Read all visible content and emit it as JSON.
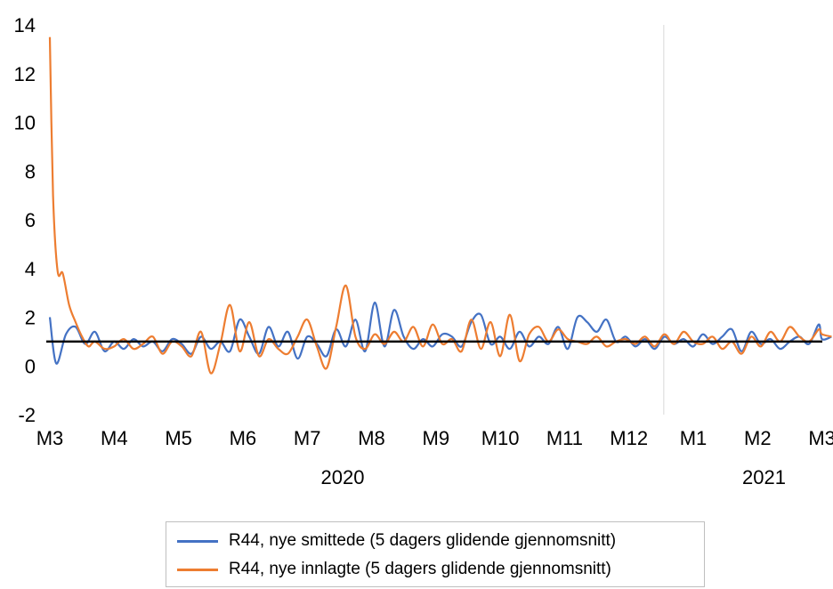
{
  "chart_data": {
    "type": "line",
    "ylim": [
      -2,
      14
    ],
    "yticks": [
      "14",
      "12",
      "10",
      "8",
      "6",
      "4",
      "2",
      "0",
      "-2"
    ],
    "month_labels": [
      "M3",
      "M4",
      "M5",
      "M6",
      "M7",
      "M8",
      "M9",
      "M10",
      "M11",
      "M12",
      "M1",
      "M2",
      "M3"
    ],
    "year_labels": [
      "2020",
      "2021"
    ],
    "reference_line": 1,
    "colors": {
      "smittede": "#4472C4",
      "innlagte": "#ED7D31",
      "reference": "#000000",
      "divider": "#d9d9d9"
    },
    "legend_placement": "bottom",
    "series": [
      {
        "name": "R44, nye smittede (5 dagers glidende gjennomsnitt)",
        "x": [
          0,
          0.1,
          0.25,
          0.4,
          0.55,
          0.7,
          0.85,
          1,
          1.15,
          1.3,
          1.45,
          1.6,
          1.75,
          1.9,
          2.05,
          2.2,
          2.35,
          2.5,
          2.65,
          2.8,
          2.95,
          3.1,
          3.25,
          3.4,
          3.55,
          3.7,
          3.85,
          4,
          4.15,
          4.3,
          4.45,
          4.6,
          4.75,
          4.9,
          5.05,
          5.2,
          5.35,
          5.5,
          5.65,
          5.8,
          5.95,
          6.1,
          6.25,
          6.4,
          6.55,
          6.7,
          6.85,
          7,
          7.15,
          7.3,
          7.45,
          7.6,
          7.75,
          7.9,
          8.05,
          8.2,
          8.35,
          8.5,
          8.65,
          8.8,
          8.95,
          9.1,
          9.25,
          9.4,
          9.55,
          9.7,
          9.85,
          10,
          10.15,
          10.3,
          10.45,
          10.6,
          10.75,
          10.9,
          11.05,
          11.2,
          11.35,
          11.5,
          11.65,
          11.8,
          11.95,
          12,
          12.15
        ],
        "values": [
          2.0,
          0.1,
          1.3,
          1.6,
          0.9,
          1.4,
          0.6,
          1.0,
          0.7,
          1.1,
          0.8,
          1.0,
          0.6,
          1.1,
          0.9,
          0.5,
          1.2,
          0.7,
          1.0,
          0.6,
          1.9,
          1.2,
          0.5,
          1.6,
          0.8,
          1.4,
          0.3,
          1.2,
          0.9,
          0.4,
          1.5,
          0.8,
          1.9,
          0.6,
          2.6,
          0.8,
          2.3,
          1.2,
          0.7,
          1.1,
          0.8,
          1.3,
          1.2,
          0.8,
          1.8,
          2.1,
          0.9,
          1.2,
          0.7,
          1.4,
          0.8,
          1.2,
          0.9,
          1.6,
          0.7,
          2.0,
          1.8,
          1.4,
          1.9,
          1.0,
          1.2,
          0.8,
          1.1,
          0.7,
          1.2,
          0.9,
          1.1,
          0.8,
          1.3,
          0.9,
          1.2,
          1.5,
          0.6,
          1.4,
          0.9,
          1.1,
          0.7,
          1.0,
          1.2,
          0.9,
          1.7,
          1.1,
          1.2
        ]
      },
      {
        "name": "R44, nye innlagte (5 dagers glidende gjennomsnitt)",
        "x": [
          0,
          0.05,
          0.12,
          0.2,
          0.3,
          0.4,
          0.5,
          0.6,
          0.7,
          0.85,
          1,
          1.15,
          1.3,
          1.45,
          1.6,
          1.75,
          1.9,
          2.05,
          2.2,
          2.35,
          2.5,
          2.65,
          2.8,
          2.95,
          3.1,
          3.25,
          3.4,
          3.55,
          3.7,
          3.85,
          4,
          4.15,
          4.3,
          4.45,
          4.6,
          4.75,
          4.9,
          5.05,
          5.2,
          5.35,
          5.5,
          5.65,
          5.8,
          5.95,
          6.1,
          6.25,
          6.4,
          6.55,
          6.7,
          6.85,
          7,
          7.15,
          7.3,
          7.45,
          7.6,
          7.75,
          7.9,
          8.05,
          8.2,
          8.35,
          8.5,
          8.65,
          8.8,
          8.95,
          9.1,
          9.25,
          9.4,
          9.55,
          9.7,
          9.85,
          10,
          10.15,
          10.3,
          10.45,
          10.6,
          10.75,
          10.9,
          11.05,
          11.2,
          11.35,
          11.5,
          11.65,
          11.8,
          11.95,
          12,
          12.15
        ],
        "values": [
          13.5,
          7.0,
          3.9,
          3.8,
          2.5,
          1.8,
          1.2,
          0.8,
          1.0,
          0.7,
          0.8,
          1.1,
          0.7,
          0.9,
          1.2,
          0.5,
          1.0,
          0.8,
          0.4,
          1.4,
          -0.3,
          0.9,
          2.5,
          0.6,
          1.8,
          0.4,
          1.1,
          0.7,
          0.5,
          1.2,
          1.9,
          0.8,
          -0.1,
          1.6,
          3.3,
          1.2,
          0.7,
          1.3,
          0.9,
          1.4,
          1.0,
          1.6,
          0.8,
          1.7,
          0.9,
          1.1,
          0.6,
          1.9,
          0.7,
          1.8,
          0.4,
          2.1,
          0.2,
          1.3,
          1.6,
          1.0,
          1.5,
          1.1,
          1.0,
          0.9,
          1.2,
          0.8,
          1.0,
          1.1,
          0.9,
          1.2,
          0.8,
          1.3,
          0.9,
          1.4,
          1.0,
          0.9,
          1.2,
          0.7,
          1.0,
          0.5,
          1.2,
          0.8,
          1.4,
          1.0,
          1.6,
          1.2,
          1.0,
          1.5,
          1.3,
          1.2
        ]
      }
    ]
  }
}
